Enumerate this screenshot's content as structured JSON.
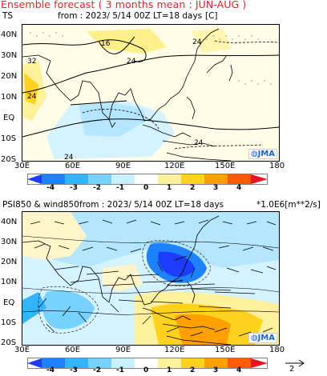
{
  "header": "Ensemble forecast ( 3 months mean : JUN-AUG )",
  "panels": [
    {
      "id": "ts",
      "variable": "TS",
      "run_info": "from : 2023/ 5/14 00Z LT=18 days",
      "unit": "[C]",
      "contour_labels": [
        "16",
        "24",
        "24",
        "32",
        "24",
        "24",
        "24"
      ],
      "logo": "JMA",
      "logo_icon": "jma-globe-icon",
      "anomaly_regions": [
        {
          "name": "tibet-warm",
          "level": 1,
          "color": "#ffd21e"
        },
        {
          "name": "indian-ocean-cool",
          "level": -1,
          "color": "#b4e6ff"
        },
        {
          "name": "arabia-warm",
          "level": 1,
          "color": "#ffd21e"
        }
      ]
    },
    {
      "id": "psi850",
      "variable": "PSI850 & wind850",
      "run_info": "from : 2023/ 5/14 00Z LT=18 days",
      "unit": "*1.0E6[m**2/s]",
      "logo": "JMA",
      "logo_icon": "jma-globe-icon",
      "reference_vector_label": "2",
      "reference_vector_icon": "arrow-right-icon"
    }
  ],
  "axes": {
    "x_ticks": [
      "30E",
      "60E",
      "90E",
      "120E",
      "150E",
      "180"
    ],
    "y_ticks": [
      "40N",
      "30N",
      "20N",
      "10N",
      "EQ",
      "10S",
      "20S"
    ]
  },
  "colorbar": {
    "labels": [
      "-4",
      "-3",
      "-2",
      "-1",
      "0",
      "1",
      "2",
      "3",
      "4"
    ],
    "colors": [
      "#1e3cff",
      "#1e82ff",
      "#32b4ff",
      "#78d2ff",
      "#c8f0ff",
      "#fff09b",
      "#ffd21e",
      "#ffa000",
      "#ff5a00",
      "#e6141e"
    ]
  }
}
